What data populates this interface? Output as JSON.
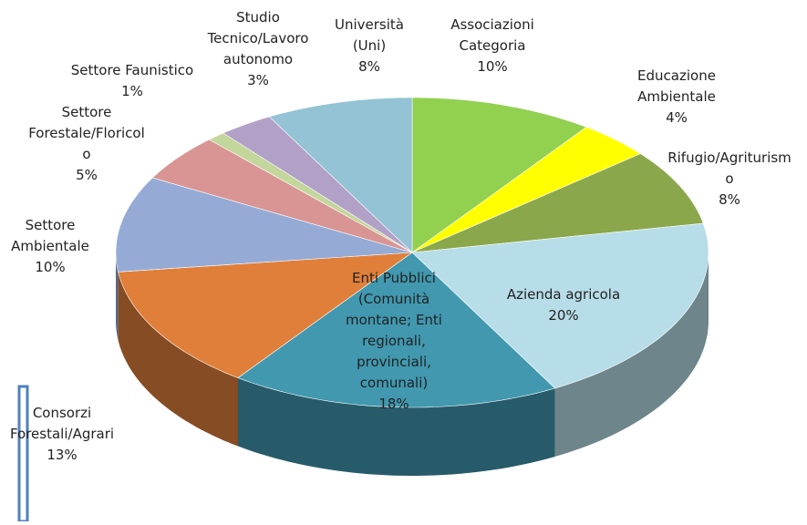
{
  "chart_data": {
    "type": "pie",
    "style": "3d",
    "categories": [
      "Associazioni Categoria",
      "Educazione Ambientale",
      "Rifugio/Agriturismo",
      "Azienda agricola",
      "Enti Pubblici (Comunità montane; Enti regionali, provinciali, comunali)",
      "Consorzi Forestali/Agrari",
      "Settore Ambientale",
      "Settore Forestale/Floricolo",
      "Settore Faunistico",
      "Studio Tecnico/Lavoro autonomo",
      "Università (Uni)"
    ],
    "values": [
      10,
      4,
      8,
      20,
      18,
      13,
      10,
      5,
      1,
      3,
      8
    ],
    "value_labels": [
      "10%",
      "4%",
      "8%",
      "20%",
      "18%",
      "13%",
      "10%",
      "5%",
      "1%",
      "3%",
      "8%"
    ],
    "colors": [
      "#92d050",
      "#ffff00",
      "#8aa84b",
      "#b7dde8",
      "#4198af",
      "#e07f3a",
      "#95abd6",
      "#d99594",
      "#c3d69b",
      "#b2a1c7",
      "#93c3d4"
    ]
  }
}
